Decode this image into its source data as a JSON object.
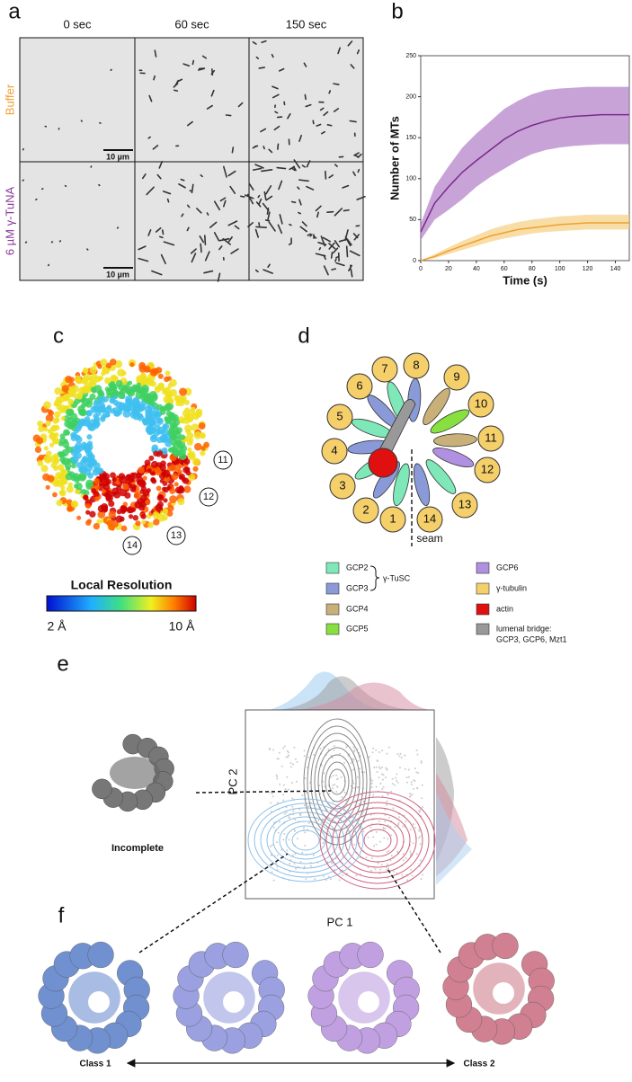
{
  "panel_a": {
    "label": "a",
    "columns": [
      "0 sec",
      "60 sec",
      "150 sec"
    ],
    "rows": [
      "Buffer",
      "6 µM γ-TuNA"
    ],
    "scale_bars": [
      "10 µm",
      "10 µm"
    ]
  },
  "chart_data": {
    "type": "line",
    "label": "b",
    "xlabel": "Time (s)",
    "ylabel": "Number of MTs",
    "x": [
      0,
      10,
      20,
      30,
      40,
      50,
      60,
      70,
      80,
      90,
      100,
      110,
      120,
      130,
      140,
      150
    ],
    "series": [
      {
        "color": "#7b2a8c",
        "band_color": "#b07cc6",
        "values": [
          35,
          70,
          90,
          108,
          122,
          135,
          148,
          158,
          165,
          170,
          174,
          176,
          177,
          178,
          178,
          178
        ],
        "lower": [
          25,
          50,
          62,
          75,
          90,
          102,
          112,
          122,
          130,
          135,
          138,
          140,
          141,
          142,
          142,
          142
        ],
        "upper": [
          45,
          90,
          115,
          138,
          155,
          170,
          185,
          195,
          203,
          208,
          210,
          211,
          212,
          212,
          212,
          212
        ]
      },
      {
        "color": "#f0a030",
        "band_color": "#f7cf82",
        "values": [
          0,
          5,
          12,
          18,
          24,
          30,
          34,
          38,
          40,
          42,
          44,
          45,
          46,
          46,
          46,
          46
        ],
        "lower": [
          0,
          3,
          8,
          13,
          18,
          23,
          27,
          30,
          33,
          35,
          36,
          37,
          38,
          38,
          38,
          38
        ],
        "upper": [
          0,
          8,
          16,
          24,
          31,
          38,
          43,
          47,
          50,
          52,
          54,
          55,
          56,
          56,
          56,
          56
        ]
      }
    ],
    "xlim": [
      0,
      150
    ],
    "ylim": [
      0,
      250
    ],
    "xticks": [
      0,
      20,
      40,
      60,
      80,
      100,
      120,
      140
    ],
    "yticks": [
      0,
      50,
      100,
      150,
      200,
      250
    ]
  },
  "panel_c": {
    "label": "c",
    "subunits": [
      "11",
      "12",
      "13",
      "14"
    ],
    "colorbar_title": "Local Resolution",
    "colorbar_min": "2 Å",
    "colorbar_max": "10 Å"
  },
  "panel_d": {
    "label": "d",
    "subunits": [
      "1",
      "2",
      "3",
      "4",
      "5",
      "6",
      "7",
      "8",
      "9",
      "10",
      "11",
      "12",
      "13",
      "14"
    ],
    "seam": "seam",
    "legend": [
      {
        "label": "GCP2",
        "color": "#7ee8b8"
      },
      {
        "label": "GCP3",
        "color": "#8a9ad8"
      },
      {
        "label": "GCP4",
        "color": "#c8b078"
      },
      {
        "label": "GCP5",
        "color": "#88e040"
      },
      {
        "label": "GCP6",
        "color": "#b090e0"
      },
      {
        "label": "γ-tubulin",
        "color": "#f5cf6a"
      },
      {
        "label": "actin",
        "color": "#e01010"
      },
      {
        "label": "lumenal bridge:",
        "color": "#999999",
        "note": "GCP3, GCP6, Mzt1"
      }
    ],
    "brace_label": "γ-TuSC"
  },
  "panel_e": {
    "label": "e",
    "structure_label": "Incomplete",
    "xlabel": "PC 1",
    "ylabel": "PC 2"
  },
  "panel_f": {
    "label": "f",
    "left_label": "Class 1",
    "right_label": "Class 2"
  }
}
